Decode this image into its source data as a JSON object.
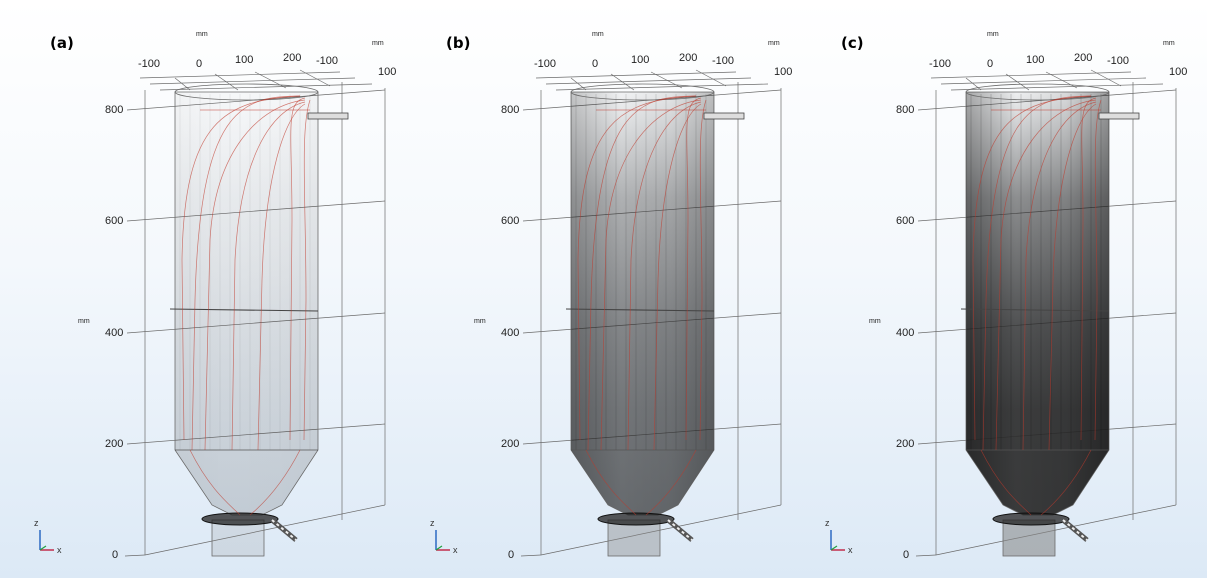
{
  "panels": [
    {
      "label": "(a)",
      "shading": 0.05
    },
    {
      "label": "(b)",
      "shading": 0.55
    },
    {
      "label": "(c)",
      "shading": 0.85
    }
  ],
  "axes": {
    "unit": "mm",
    "z_ticks": [
      "800",
      "600",
      "400",
      "200",
      "0"
    ],
    "x_ticks": [
      "-100",
      "0",
      "100",
      "200"
    ],
    "y_ticks": [
      "-100",
      "100"
    ],
    "triad_z": "z",
    "triad_x": "x"
  },
  "colors": {
    "streamline": "#c0392b",
    "frame": "#6b6b6b",
    "shade": "#2a2a2a"
  }
}
